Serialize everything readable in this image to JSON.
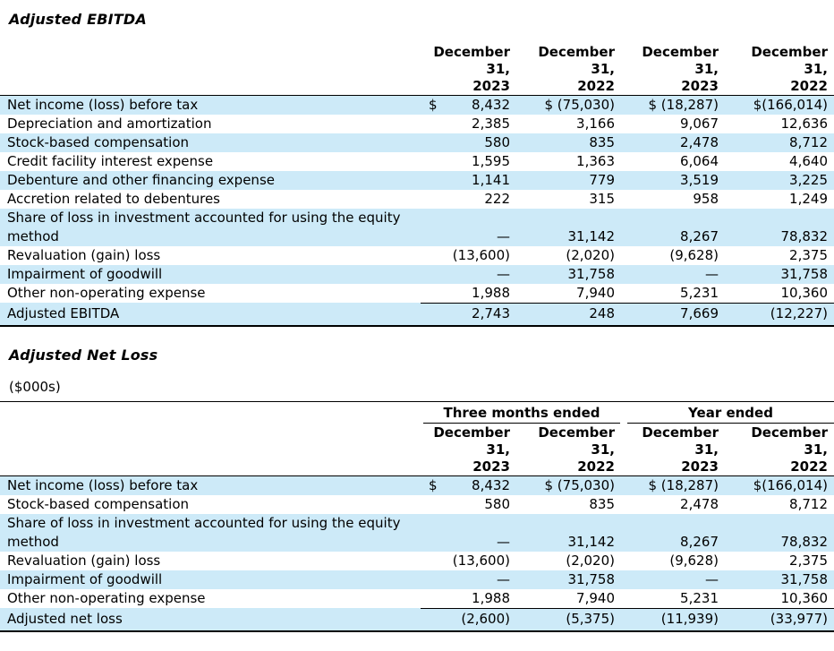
{
  "colors": {
    "stripe": "#cdeaf8",
    "border": "#000000",
    "text": "#000000",
    "background": "#ffffff"
  },
  "sections": [
    {
      "id": "adjusted-ebitda",
      "title": "Adjusted EBITDA",
      "table": {
        "column_headers": [
          [
            "December",
            "31,",
            "2023"
          ],
          [
            "December",
            "31,",
            "2022"
          ],
          [
            "December",
            "31,",
            "2023"
          ],
          [
            "December",
            "31,",
            "2022"
          ]
        ],
        "rows": [
          {
            "label": "Net income (loss) before tax",
            "prefix": "$",
            "values": [
              "8,432",
              "$ (75,030)",
              "$ (18,287)",
              "$(166,014)"
            ],
            "shaded": true
          },
          {
            "label": "Depreciation and amortization",
            "values": [
              "2,385",
              "3,166",
              "9,067",
              "12,636"
            ],
            "shaded": false
          },
          {
            "label": "Stock-based compensation",
            "values": [
              "580",
              "835",
              "2,478",
              "8,712"
            ],
            "shaded": true
          },
          {
            "label": "Credit facility interest expense",
            "values": [
              "1,595",
              "1,363",
              "6,064",
              "4,640"
            ],
            "shaded": false
          },
          {
            "label": "Debenture and other financing expense",
            "values": [
              "1,141",
              "779",
              "3,519",
              "3,225"
            ],
            "shaded": true
          },
          {
            "label": "Accretion related to debentures",
            "values": [
              "222",
              "315",
              "958",
              "1,249"
            ],
            "shaded": false
          },
          {
            "label": "Share of loss in investment accounted for using the equity method",
            "values": [
              "—",
              "31,142",
              "8,267",
              "78,832"
            ],
            "shaded": true
          },
          {
            "label": "Revaluation (gain) loss",
            "values": [
              "(13,600)",
              "(2,020)",
              "(9,628)",
              "2,375"
            ],
            "shaded": false
          },
          {
            "label": "Impairment of goodwill",
            "values": [
              "—",
              "31,758",
              "—",
              "31,758"
            ],
            "shaded": true
          },
          {
            "label": "Other non-operating expense",
            "values": [
              "1,988",
              "7,940",
              "5,231",
              "10,360"
            ],
            "shaded": false
          },
          {
            "label": "Adjusted EBITDA",
            "values": [
              "2,743",
              "248",
              "7,669",
              "(12,227)"
            ],
            "shaded": true,
            "total": true
          }
        ]
      }
    },
    {
      "id": "adjusted-net-loss",
      "title": "Adjusted Net Loss",
      "units_note": "($000s)",
      "table": {
        "group_headers": [
          "Three months ended",
          "Year ended"
        ],
        "column_headers": [
          [
            "December",
            "31,",
            "2023"
          ],
          [
            "December",
            "31,",
            "2022"
          ],
          [
            "December",
            "31,",
            "2023"
          ],
          [
            "December",
            "31,",
            "2022"
          ]
        ],
        "rows": [
          {
            "label": "Net income (loss) before tax",
            "prefix": "$",
            "values": [
              "8,432",
              "$ (75,030)",
              "$ (18,287)",
              "$(166,014)"
            ],
            "shaded": true
          },
          {
            "label": "Stock-based compensation",
            "values": [
              "580",
              "835",
              "2,478",
              "8,712"
            ],
            "shaded": false
          },
          {
            "label": "Share of loss in investment accounted for using the equity method",
            "values": [
              "—",
              "31,142",
              "8,267",
              "78,832"
            ],
            "shaded": true
          },
          {
            "label": "Revaluation (gain) loss",
            "values": [
              "(13,600)",
              "(2,020)",
              "(9,628)",
              "2,375"
            ],
            "shaded": false
          },
          {
            "label": "Impairment of goodwill",
            "values": [
              "—",
              "31,758",
              "—",
              "31,758"
            ],
            "shaded": true
          },
          {
            "label": "Other non-operating expense",
            "values": [
              "1,988",
              "7,940",
              "5,231",
              "10,360"
            ],
            "shaded": false
          },
          {
            "label": "Adjusted net loss",
            "values": [
              "(2,600)",
              "(5,375)",
              "(11,939)",
              "(33,977)"
            ],
            "shaded": true,
            "total": true
          }
        ]
      }
    }
  ]
}
